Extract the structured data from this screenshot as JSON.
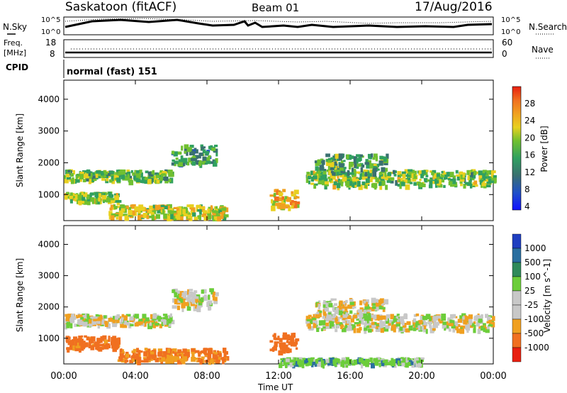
{
  "header": {
    "station": "Saskatoon (fitACF)",
    "beam": "Beam 01",
    "date": "17/Aug/2016"
  },
  "nsky_panel": {
    "label": "N.Sky",
    "right_label": "N.Search",
    "ticks_left": [
      "10^5",
      "10^0"
    ],
    "ticks_right": [
      "10^5",
      "10^0"
    ]
  },
  "freq_panel": {
    "label_line1": "Freq.",
    "label_line2": "[MHz]",
    "right_label": "Nave",
    "ticks_left": [
      "18",
      "8"
    ],
    "ticks_right": [
      "60",
      "0"
    ]
  },
  "cpid_panel": {
    "label": "CPID",
    "value": "normal (fast) 151"
  },
  "time_axis": {
    "title": "Time UT",
    "ticks": [
      "00:00",
      "04:00",
      "08:00",
      "12:00",
      "16:00",
      "20:00",
      "00:00"
    ]
  },
  "colors": {
    "power_scale": [
      "#1010ff",
      "#2050c8",
      "#3a7070",
      "#30a060",
      "#70c030",
      "#e8d020",
      "#f0a020",
      "#f07020",
      "#e82010"
    ],
    "velocity_scale": [
      "#1f3fc0",
      "#2a6fa0",
      "#2f8a5a",
      "#6ccd3a",
      "#c8c8c8",
      "#c8c8c8",
      "#f0a020",
      "#f07020",
      "#e82010"
    ]
  },
  "chart_data": [
    {
      "type": "heatmap",
      "title": "",
      "xlabel": "",
      "ylabel": "Slant Range [km]",
      "xlim": [
        0,
        24
      ],
      "ylim": [
        180,
        4600
      ],
      "y_ticks": [
        1000,
        2000,
        3000,
        4000
      ],
      "colorbar": {
        "label": "Power [dB]",
        "ticks": [
          "28",
          "24",
          "20",
          "16",
          "12",
          "8",
          "4"
        ],
        "range": [
          0,
          30
        ]
      },
      "bands": [
        {
          "t_start": 0.0,
          "t_end": 6.0,
          "range_start": 1450,
          "range_end": 1800,
          "level": 14
        },
        {
          "t_start": 6.0,
          "t_end": 8.5,
          "range_start": 2000,
          "range_end": 2600,
          "level": 10
        },
        {
          "t_start": 0.0,
          "t_end": 3.0,
          "range_start": 800,
          "range_end": 1100,
          "level": 16
        },
        {
          "t_start": 2.5,
          "t_end": 9.0,
          "range_start": 300,
          "range_end": 700,
          "level": 18
        },
        {
          "t_start": 11.5,
          "t_end": 13.0,
          "range_start": 600,
          "range_end": 1200,
          "level": 20
        },
        {
          "t_start": 13.5,
          "t_end": 24.0,
          "range_start": 1300,
          "range_end": 1800,
          "level": 15
        },
        {
          "t_start": 14.0,
          "t_end": 18.0,
          "range_start": 1700,
          "range_end": 2300,
          "level": 12
        }
      ]
    },
    {
      "type": "heatmap",
      "title": "",
      "xlabel": "Time UT",
      "ylabel": "Slant Range [km]",
      "xlim": [
        0,
        24
      ],
      "ylim": [
        180,
        4600
      ],
      "y_ticks": [
        1000,
        2000,
        3000,
        4000
      ],
      "colorbar": {
        "label": "Velocity [m s^-1]",
        "ticks": [
          "1000",
          "500",
          "100",
          "25",
          "-25",
          "-100",
          "-500",
          "-1000"
        ],
        "range": [
          -1000,
          1000
        ]
      },
      "bands": [
        {
          "t_start": 0.0,
          "t_end": 6.0,
          "range_start": 1450,
          "range_end": 1800,
          "value": 0
        },
        {
          "t_start": 6.0,
          "t_end": 8.5,
          "range_start": 2000,
          "range_end": 2600,
          "value": 0
        },
        {
          "t_start": 0.0,
          "t_end": 3.0,
          "range_start": 700,
          "range_end": 1100,
          "value": -150
        },
        {
          "t_start": 3.0,
          "t_end": 9.0,
          "range_start": 300,
          "range_end": 700,
          "value": -120
        },
        {
          "t_start": 11.5,
          "t_end": 13.0,
          "range_start": 600,
          "range_end": 1200,
          "value": -200
        },
        {
          "t_start": 13.5,
          "t_end": 24.0,
          "range_start": 1300,
          "range_end": 1800,
          "value": 0
        },
        {
          "t_start": 14.0,
          "t_end": 18.0,
          "range_start": 1700,
          "range_end": 2300,
          "value": 0
        },
        {
          "t_start": 12.0,
          "t_end": 20.0,
          "range_start": 200,
          "range_end": 400,
          "value": 60
        }
      ]
    }
  ]
}
